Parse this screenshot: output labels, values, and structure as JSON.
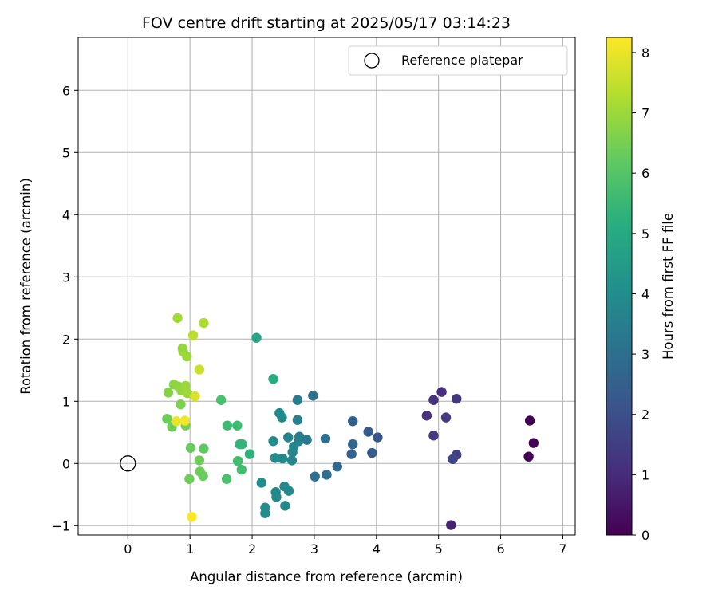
{
  "chart_data": {
    "type": "scatter",
    "title": "FOV centre drift starting at 2025/05/17 03:14:23",
    "xlabel": "Angular distance from reference (arcmin)",
    "ylabel": "Rotation from reference (arcmin)",
    "xlim": [
      -0.8,
      7.2
    ],
    "ylim": [
      -1.15,
      6.85
    ],
    "xticks": [
      0,
      1,
      2,
      3,
      4,
      5,
      6,
      7
    ],
    "yticks": [
      -1,
      0,
      1,
      2,
      3,
      4,
      5,
      6
    ],
    "grid": true,
    "legend": {
      "placement": "top-right",
      "entries": [
        "Reference platepar"
      ]
    },
    "reference_point": {
      "x": 0,
      "y": 0
    },
    "colorbar": {
      "label": "Hours from first FF file",
      "range": [
        0,
        8.25
      ],
      "ticks": [
        0,
        1,
        2,
        3,
        4,
        5,
        6,
        7,
        8
      ],
      "colormap": "viridis"
    },
    "points": [
      {
        "x": 6.47,
        "y": 0.69,
        "c": 0.0
      },
      {
        "x": 6.53,
        "y": 0.33,
        "c": 0.05
      },
      {
        "x": 6.45,
        "y": 0.11,
        "c": 0.1
      },
      {
        "x": 5.2,
        "y": -0.99,
        "c": 0.8
      },
      {
        "x": 5.05,
        "y": 1.15,
        "c": 1.1
      },
      {
        "x": 4.92,
        "y": 1.02,
        "c": 1.2
      },
      {
        "x": 5.29,
        "y": 1.04,
        "c": 1.3
      },
      {
        "x": 4.81,
        "y": 0.77,
        "c": 1.2
      },
      {
        "x": 5.12,
        "y": 0.74,
        "c": 1.4
      },
      {
        "x": 4.92,
        "y": 0.45,
        "c": 1.4
      },
      {
        "x": 5.29,
        "y": 0.14,
        "c": 1.6
      },
      {
        "x": 5.23,
        "y": 0.07,
        "c": 1.7
      },
      {
        "x": 4.02,
        "y": 0.42,
        "c": 2.2
      },
      {
        "x": 3.87,
        "y": 0.51,
        "c": 2.4
      },
      {
        "x": 3.93,
        "y": 0.17,
        "c": 2.4
      },
      {
        "x": 3.62,
        "y": 0.68,
        "c": 2.6
      },
      {
        "x": 3.62,
        "y": 0.31,
        "c": 2.7
      },
      {
        "x": 3.6,
        "y": 0.15,
        "c": 2.6
      },
      {
        "x": 3.37,
        "y": -0.05,
        "c": 2.8
      },
      {
        "x": 3.2,
        "y": -0.18,
        "c": 2.9
      },
      {
        "x": 3.01,
        "y": -0.21,
        "c": 3.0
      },
      {
        "x": 3.18,
        "y": 0.4,
        "c": 3.0
      },
      {
        "x": 2.98,
        "y": 1.09,
        "c": 3.1
      },
      {
        "x": 2.73,
        "y": 1.02,
        "c": 3.4
      },
      {
        "x": 2.88,
        "y": 0.38,
        "c": 3.3
      },
      {
        "x": 2.76,
        "y": 0.43,
        "c": 3.4
      },
      {
        "x": 2.73,
        "y": 0.7,
        "c": 3.5
      },
      {
        "x": 2.75,
        "y": 0.36,
        "c": 3.6
      },
      {
        "x": 2.67,
        "y": 0.27,
        "c": 3.8
      },
      {
        "x": 2.65,
        "y": 0.18,
        "c": 3.8
      },
      {
        "x": 2.64,
        "y": 0.05,
        "c": 3.7
      },
      {
        "x": 2.58,
        "y": 0.42,
        "c": 3.7
      },
      {
        "x": 2.48,
        "y": 0.74,
        "c": 3.9
      },
      {
        "x": 2.44,
        "y": 0.81,
        "c": 3.9
      },
      {
        "x": 2.34,
        "y": 0.36,
        "c": 4.0
      },
      {
        "x": 2.37,
        "y": 0.09,
        "c": 4.0
      },
      {
        "x": 2.49,
        "y": 0.08,
        "c": 3.9
      },
      {
        "x": 2.52,
        "y": -0.37,
        "c": 3.8
      },
      {
        "x": 2.59,
        "y": -0.44,
        "c": 3.8
      },
      {
        "x": 2.38,
        "y": -0.46,
        "c": 3.9
      },
      {
        "x": 2.39,
        "y": -0.54,
        "c": 3.9
      },
      {
        "x": 2.15,
        "y": -0.31,
        "c": 4.0
      },
      {
        "x": 2.53,
        "y": -0.68,
        "c": 3.9
      },
      {
        "x": 2.21,
        "y": -0.71,
        "c": 4.0
      },
      {
        "x": 2.21,
        "y": -0.8,
        "c": 4.0
      },
      {
        "x": 2.07,
        "y": 2.02,
        "c": 4.8
      },
      {
        "x": 2.34,
        "y": 1.36,
        "c": 5.1
      },
      {
        "x": 1.96,
        "y": 0.15,
        "c": 5.3
      },
      {
        "x": 1.8,
        "y": 0.31,
        "c": 5.4
      },
      {
        "x": 1.84,
        "y": 0.31,
        "c": 5.4
      },
      {
        "x": 1.76,
        "y": 0.61,
        "c": 5.6
      },
      {
        "x": 1.6,
        "y": 0.61,
        "c": 5.6
      },
      {
        "x": 1.5,
        "y": 1.02,
        "c": 5.8
      },
      {
        "x": 1.77,
        "y": 0.04,
        "c": 5.7
      },
      {
        "x": 1.83,
        "y": -0.1,
        "c": 5.7
      },
      {
        "x": 1.59,
        "y": -0.25,
        "c": 5.8
      },
      {
        "x": 1.22,
        "y": 0.24,
        "c": 6.2
      },
      {
        "x": 1.01,
        "y": 0.25,
        "c": 6.3
      },
      {
        "x": 1.15,
        "y": 0.05,
        "c": 6.4
      },
      {
        "x": 1.16,
        "y": -0.13,
        "c": 6.4
      },
      {
        "x": 1.21,
        "y": -0.2,
        "c": 6.3
      },
      {
        "x": 0.99,
        "y": -0.25,
        "c": 6.4
      },
      {
        "x": 0.63,
        "y": 0.72,
        "c": 6.4
      },
      {
        "x": 0.71,
        "y": 0.59,
        "c": 6.4
      },
      {
        "x": 0.93,
        "y": 0.61,
        "c": 6.5
      },
      {
        "x": 0.85,
        "y": 0.95,
        "c": 6.6
      },
      {
        "x": 0.65,
        "y": 1.14,
        "c": 6.7
      },
      {
        "x": 0.74,
        "y": 1.27,
        "c": 6.8
      },
      {
        "x": 0.81,
        "y": 1.24,
        "c": 6.8
      },
      {
        "x": 0.86,
        "y": 1.17,
        "c": 6.9
      },
      {
        "x": 0.96,
        "y": 1.13,
        "c": 7.0
      },
      {
        "x": 0.93,
        "y": 1.25,
        "c": 7.0
      },
      {
        "x": 0.89,
        "y": 1.8,
        "c": 7.0
      },
      {
        "x": 0.88,
        "y": 1.85,
        "c": 6.9
      },
      {
        "x": 0.95,
        "y": 1.72,
        "c": 7.0
      },
      {
        "x": 0.8,
        "y": 2.34,
        "c": 7.1
      },
      {
        "x": 1.22,
        "y": 2.26,
        "c": 7.2
      },
      {
        "x": 1.05,
        "y": 2.06,
        "c": 7.4
      },
      {
        "x": 1.15,
        "y": 1.51,
        "c": 7.6
      },
      {
        "x": 1.08,
        "y": 1.08,
        "c": 7.8
      },
      {
        "x": 0.78,
        "y": 0.68,
        "c": 8.0
      },
      {
        "x": 0.92,
        "y": 0.69,
        "c": 8.1
      },
      {
        "x": 1.03,
        "y": -0.86,
        "c": 8.25
      }
    ]
  }
}
